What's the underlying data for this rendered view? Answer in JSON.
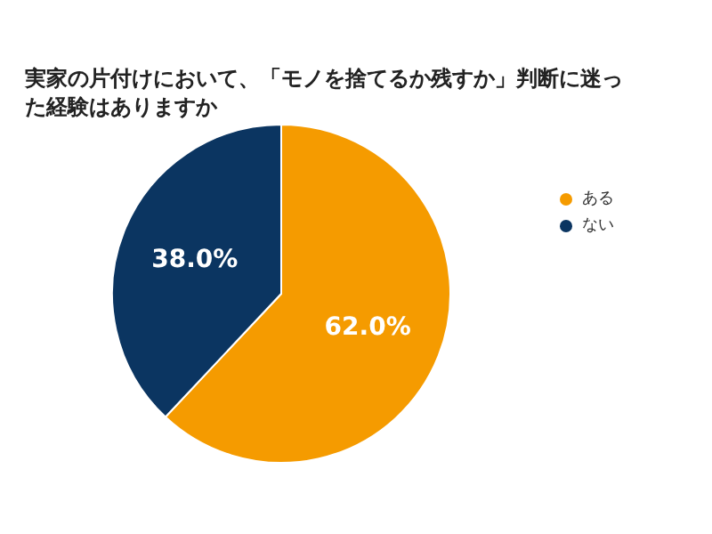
{
  "chart_data": {
    "type": "pie",
    "title": "実家の片付けにおいて、「モノを捨てるか残すか」判断に迷った経験はありますか",
    "categories": [
      "ある",
      "ない"
    ],
    "values": [
      62.0,
      38.0
    ],
    "colors": [
      "#f59b00",
      "#0b3561"
    ],
    "value_labels": [
      "62.0%",
      "38.0%"
    ],
    "legend": "right"
  }
}
